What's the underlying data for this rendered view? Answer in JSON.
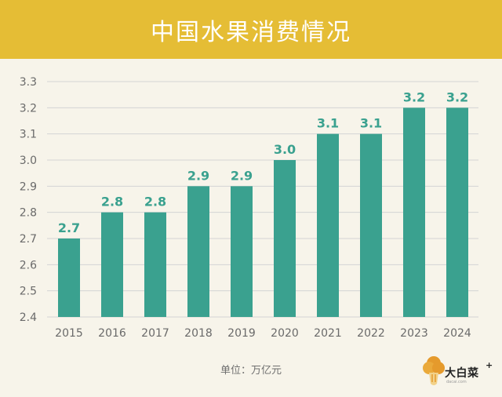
{
  "title": "中国水果消费情况",
  "unit_label": "单位：万亿元",
  "logo": {
    "text": "大白菜",
    "plus": "+",
    "sub": "dacai.com"
  },
  "colors": {
    "banner": "#e5bd35",
    "bar": "#3aa18f",
    "label": "#3aa18f",
    "grid": "#d4d4d4",
    "background": "#f7f4ea"
  },
  "chart_data": {
    "type": "bar",
    "categories": [
      "2015",
      "2016",
      "2017",
      "2018",
      "2019",
      "2020",
      "2021",
      "2022",
      "2023",
      "2024"
    ],
    "values": [
      2.7,
      2.8,
      2.8,
      2.9,
      2.9,
      3.0,
      3.1,
      3.1,
      3.2,
      3.2
    ],
    "data_labels": [
      "2.7",
      "2.8",
      "2.8",
      "2.9",
      "2.9",
      "3.0",
      "3.1",
      "3.1",
      "3.2",
      "3.2"
    ],
    "yticks": [
      "2.4",
      "2.5",
      "2.6",
      "2.7",
      "2.8",
      "2.9",
      "3.0",
      "3.1",
      "3.2",
      "3.3"
    ],
    "ylim": [
      2.4,
      3.3
    ],
    "grid": true,
    "title": "中国水果消费情况",
    "xlabel": "",
    "ylabel": ""
  }
}
